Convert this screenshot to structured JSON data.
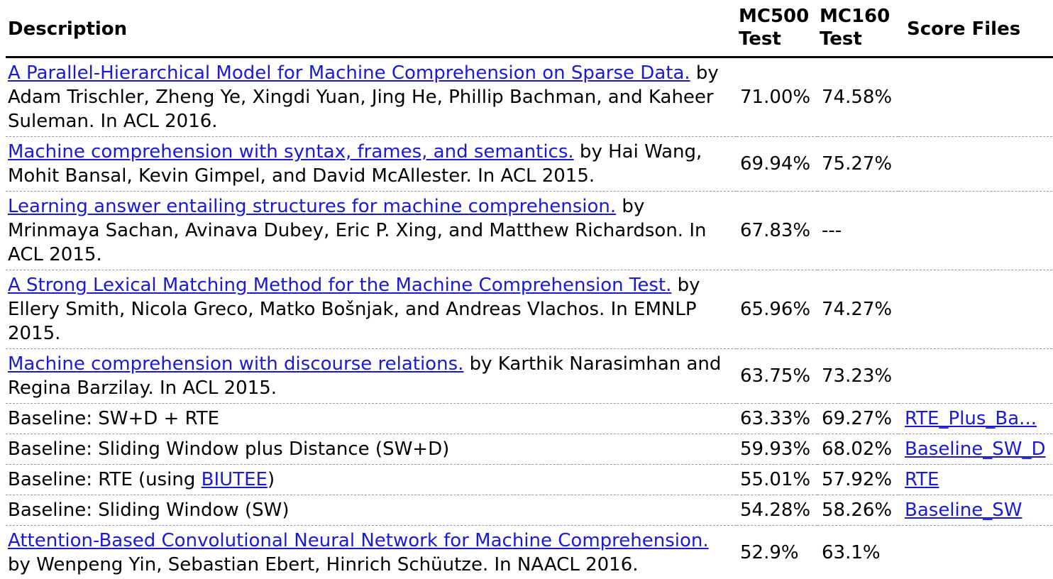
{
  "headers": {
    "description": "Description",
    "mc500_line1": "MC500",
    "mc500_line2": "Test",
    "mc160_line1": "MC160",
    "mc160_line2": "Test",
    "score_files": "Score Files"
  },
  "rows": [
    {
      "link": "A Parallel-Hierarchical Model for Machine Comprehension on Sparse Data.",
      "text": " by Adam Trischler, Zheng Ye, Xingdi Yuan, Jing He, Phillip Bachman, and Kaheer Suleman. In ACL 2016.",
      "mc500": "71.00%",
      "mc160": "74.58%",
      "file": ""
    },
    {
      "link": "Machine comprehension with syntax, frames, and semantics.",
      "text": " by Hai Wang, Mohit Bansal, Kevin Gimpel, and David McAllester. In ACL 2015.",
      "mc500": "69.94%",
      "mc160": "75.27%",
      "file": ""
    },
    {
      "link": "Learning answer entailing structures for machine comprehension.",
      "text": " by Mrinmaya Sachan, Avinava Dubey, Eric P. Xing, and Matthew Richardson. In ACL 2015.",
      "mc500": "67.83%",
      "mc160": "---",
      "file": ""
    },
    {
      "link": "A Strong Lexical Matching Method for the Machine Comprehension Test.",
      "text": " by Ellery Smith, Nicola Greco, Matko Bošnjak, and Andreas Vlachos. In EMNLP 2015.",
      "mc500": "65.96%",
      "mc160": "74.27%",
      "file": ""
    },
    {
      "link": "Machine comprehension with discourse relations.",
      "text": " by Karthik Narasimhan and Regina Barzilay. In ACL 2015.",
      "mc500": "63.75%",
      "mc160": "73.23%",
      "file": ""
    },
    {
      "text": "Baseline: SW+D + RTE",
      "mc500": "63.33%",
      "mc160": "69.27%",
      "file": "RTE_Plus_Ba..."
    },
    {
      "text": "Baseline: Sliding Window plus Distance (SW+D)",
      "mc500": "59.93%",
      "mc160": "68.02%",
      "file": "Baseline_SW_D"
    },
    {
      "text_before": "Baseline: RTE (using ",
      "inline_link": "BIUTEE",
      "text_after": ")",
      "mc500": "55.01%",
      "mc160": "57.92%",
      "file": "RTE"
    },
    {
      "text": "Baseline: Sliding Window (SW)",
      "mc500": "54.28%",
      "mc160": "58.26%",
      "file": "Baseline_SW"
    },
    {
      "link": "Attention-Based Convolutional Neural Network for Machine Comprehension.",
      "text": " by Wenpeng Yin, Sebastian Ebert, Hinrich Schüutze. In NAACL 2016.",
      "mc500": "52.9%",
      "mc160": "63.1%",
      "file": ""
    }
  ],
  "colors": {
    "link": "#1a1ad6",
    "divider": "#9a9a9a",
    "header_rule": "#000000"
  }
}
